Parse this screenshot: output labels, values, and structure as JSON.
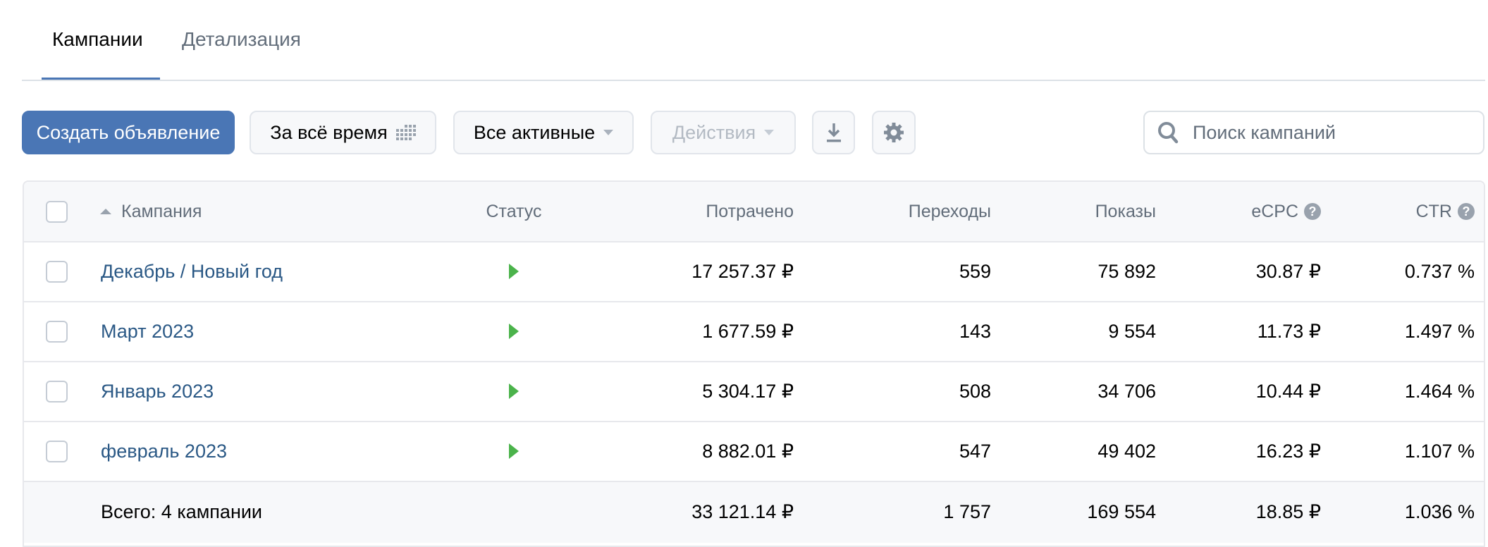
{
  "tabs": [
    {
      "label": "Кампании",
      "active": true
    },
    {
      "label": "Детализация",
      "active": false
    }
  ],
  "toolbar": {
    "create_label": "Создать объявление",
    "period_label": "За всё время",
    "filter_label": "Все активные",
    "actions_label": "Действия",
    "search_placeholder": "Поиск кампаний"
  },
  "colors": {
    "accent": "#4a76b5",
    "link": "#2a5885",
    "status_active": "#4bb34b"
  },
  "table": {
    "headers": {
      "campaign": "Кампания",
      "status": "Статус",
      "spent": "Потрачено",
      "clicks": "Переходы",
      "impressions": "Показы",
      "ecpc": "eCPC",
      "ctr": "CTR",
      "help": "?"
    },
    "rows": [
      {
        "name": "Декабрь / Новый год",
        "status": "active",
        "spent": "17 257.37 ₽",
        "clicks": "559",
        "impressions": "75 892",
        "ecpc": "30.87 ₽",
        "ctr": "0.737 %"
      },
      {
        "name": "Март 2023",
        "status": "active",
        "spent": "1 677.59 ₽",
        "clicks": "143",
        "impressions": "9 554",
        "ecpc": "11.73 ₽",
        "ctr": "1.497 %"
      },
      {
        "name": "Январь 2023",
        "status": "active",
        "spent": "5 304.17 ₽",
        "clicks": "508",
        "impressions": "34 706",
        "ecpc": "10.44 ₽",
        "ctr": "1.464 %"
      },
      {
        "name": "февраль 2023",
        "status": "active",
        "spent": "8 882.01 ₽",
        "clicks": "547",
        "impressions": "49 402",
        "ecpc": "16.23 ₽",
        "ctr": "1.107 %"
      }
    ],
    "total": {
      "label": "Всего: 4 кампании",
      "spent": "33 121.14 ₽",
      "clicks": "1 757",
      "impressions": "169 554",
      "ecpc": "18.85 ₽",
      "ctr": "1.036 %"
    }
  }
}
